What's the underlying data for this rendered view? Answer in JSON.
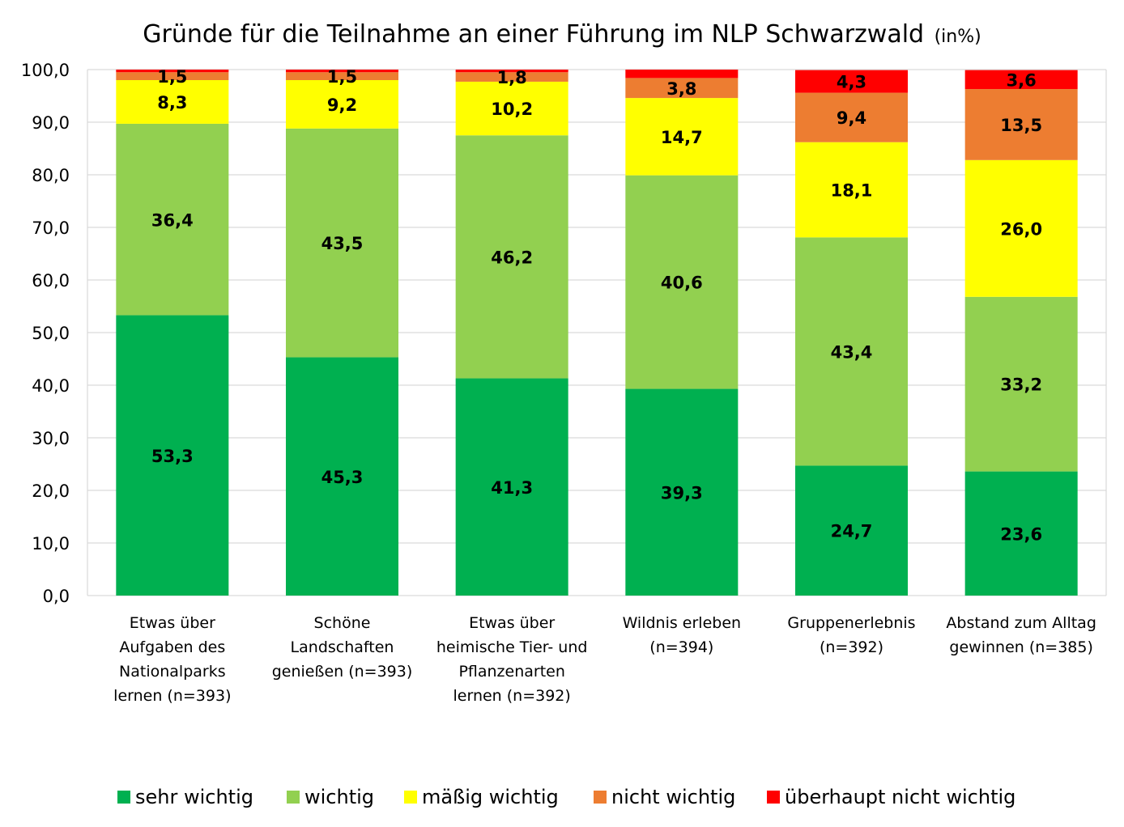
{
  "chart_data": {
    "type": "bar",
    "stacked": true,
    "title": "Gründe für die Teilnahme an einer Führung im NLP Schwarzwald",
    "subtitle": "(in%)",
    "xlabel": "",
    "ylabel": "",
    "ylim": [
      0,
      100
    ],
    "yticks": [
      "0,0",
      "10,0",
      "20,0",
      "30,0",
      "40,0",
      "50,0",
      "60,0",
      "70,0",
      "80,0",
      "90,0",
      "100,0"
    ],
    "grid": true,
    "legend_position": "bottom",
    "categories": [
      [
        "Etwas über",
        "Aufgaben des",
        "Nationalparks",
        "lernen (n=393)"
      ],
      [
        "Schöne",
        "Landschaften",
        "genießen (n=393)"
      ],
      [
        "Etwas über",
        "heimische Tier- und",
        "Pflanzenarten",
        "lernen (n=392)"
      ],
      [
        "Wildnis erleben",
        "(n=394)"
      ],
      [
        "Gruppenerlebnis",
        "(n=392)"
      ],
      [
        "Abstand zum Alltag",
        "gewinnen (n=385)"
      ]
    ],
    "series": [
      {
        "name": "sehr wichtig",
        "color": "#00B050",
        "values": [
          53.3,
          45.3,
          41.3,
          39.3,
          24.7,
          23.6
        ],
        "labels": [
          "53,3",
          "45,3",
          "41,3",
          "39,3",
          "24,7",
          "23,6"
        ]
      },
      {
        "name": "wichtig",
        "color": "#92D050",
        "values": [
          36.4,
          43.5,
          46.2,
          40.6,
          43.4,
          33.2
        ],
        "labels": [
          "36,4",
          "43,5",
          "46,2",
          "40,6",
          "43,4",
          "33,2"
        ]
      },
      {
        "name": "mäßig wichtig",
        "color": "#FFFF00",
        "values": [
          8.3,
          9.2,
          10.2,
          14.7,
          18.1,
          26.0
        ],
        "labels": [
          "8,3",
          "9,2",
          "10,2",
          "14,7",
          "18,1",
          "26,0"
        ]
      },
      {
        "name": "nicht wichtig",
        "color": "#ED7D31",
        "values": [
          1.5,
          1.5,
          1.8,
          3.8,
          9.4,
          13.5
        ],
        "labels": [
          "1,5",
          "1,5",
          "1,8",
          "3,8",
          "9,4",
          "13,5"
        ]
      },
      {
        "name": "überhaupt nicht wichtig",
        "color": "#FF0000",
        "values": [
          0.5,
          0.5,
          0.5,
          1.6,
          4.3,
          3.6
        ],
        "labels": [
          "",
          "",
          "",
          "",
          "4,3",
          "3,6"
        ]
      }
    ]
  }
}
